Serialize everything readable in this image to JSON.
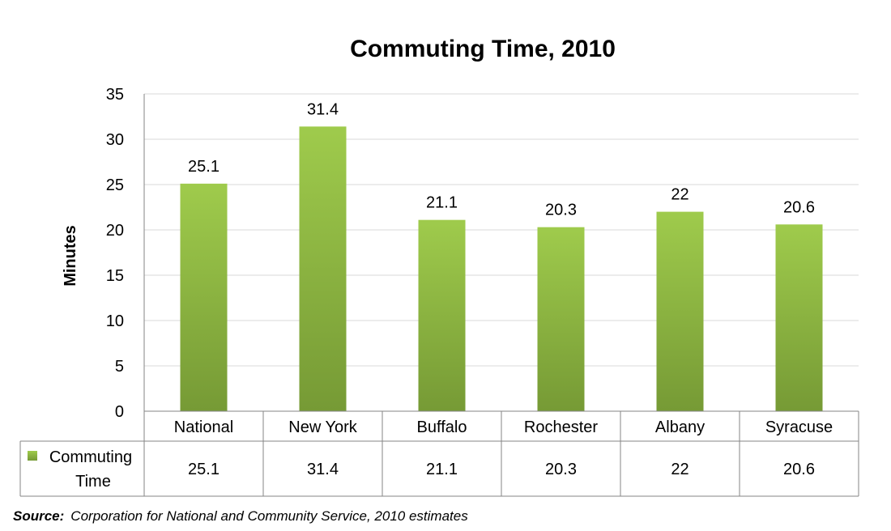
{
  "chart_data": {
    "type": "bar",
    "title": "Commuting Time, 2010",
    "xlabel": "",
    "ylabel": "Minutes",
    "ylim": [
      0,
      35
    ],
    "yticks": [
      0,
      5,
      10,
      15,
      20,
      25,
      30,
      35
    ],
    "grid": true,
    "categories": [
      "National",
      "New York",
      "Buffalo",
      "Rochester",
      "Albany",
      "Syracuse"
    ],
    "series": [
      {
        "name": "Commuting Time",
        "values": [
          25.1,
          31.4,
          21.1,
          20.3,
          22,
          20.6
        ],
        "color": "#8db843"
      }
    ],
    "data_table": true,
    "legend": "data-table"
  },
  "source": {
    "label": "Source:",
    "text": "Corporation for National and Community Service, 2010 estimates"
  },
  "colors": {
    "bar_top": "#9fcb4c",
    "bar_bottom": "#769a35",
    "grid": "#d9d9d9",
    "axis": "#868686"
  }
}
